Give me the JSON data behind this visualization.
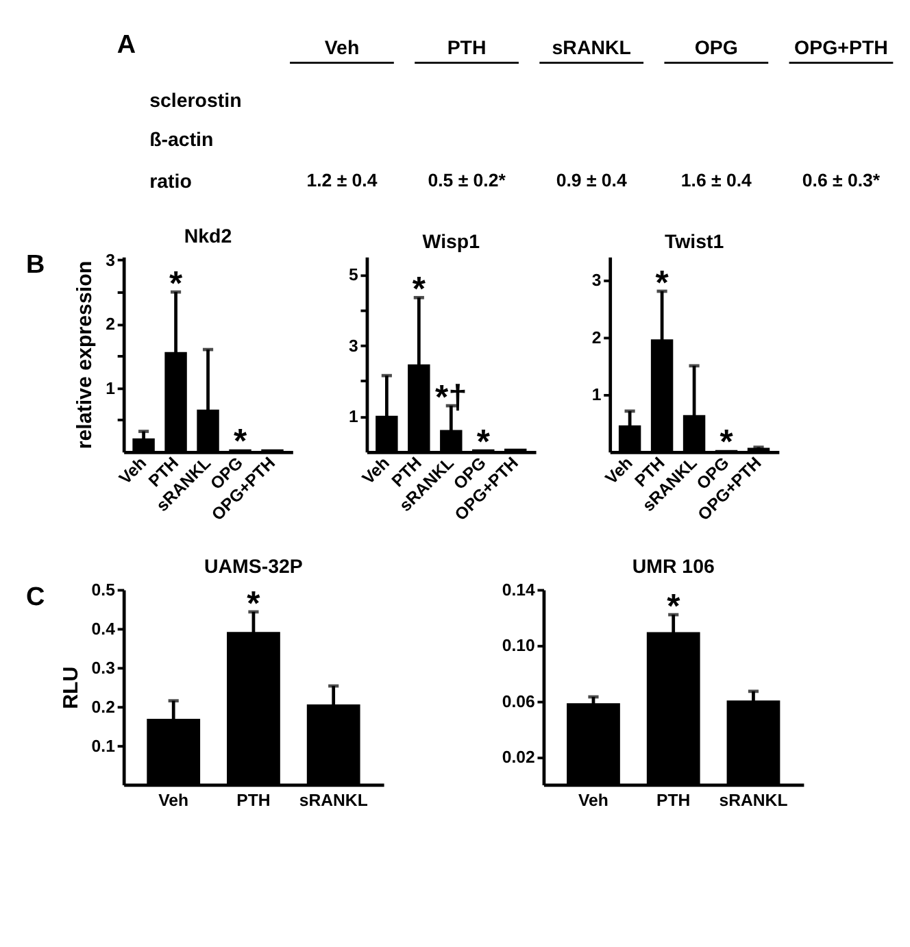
{
  "chart_data": [
    {
      "type": "other",
      "categories": [
        "Veh",
        "PTH",
        "sRANKL",
        "OPG",
        "OPG+PTH"
      ],
      "y_categories": [
        "sclerostin",
        "ß-actin",
        "ratio"
      ],
      "annotations": [
        "A",
        "1.2 ± 0.4",
        "0.5 ± 0.2*",
        "0.9 ± 0.4",
        "1.6 ± 0.4",
        "0.6 ± 0.3*"
      ]
    },
    {
      "type": "bar",
      "title": "Nkd2",
      "ylabel": "relative expression",
      "categories": [
        "Veh",
        "PTH",
        "sRANKL",
        "OPG",
        "OPG+PTH"
      ],
      "color": "#000000",
      "values": [
        0.2,
        1.55,
        0.65,
        0.03,
        0.03
      ],
      "errors": [
        [
          0.2,
          0.32
        ],
        [
          1.55,
          2.5
        ],
        [
          0.65,
          1.6
        ],
        null,
        null
      ],
      "ylim": [
        0,
        3.05
      ],
      "yticks": [
        {
          "value": 0.5,
          "label": null
        },
        1,
        {
          "value": 1.5,
          "label": null
        },
        2,
        {
          "value": 2.5,
          "label": null
        },
        3
      ],
      "annotations": [
        "B",
        {
          "text": "*",
          "x": "PTH",
          "y": 2.5
        },
        {
          "text": "*",
          "x": "OPG",
          "y": 0.03
        }
      ]
    },
    {
      "type": "bar",
      "title": "Wisp1",
      "categories": [
        "Veh",
        "PTH",
        "sRANKL",
        "OPG",
        "OPG+PTH"
      ],
      "color": "#000000",
      "values": [
        1.0,
        2.45,
        0.6,
        0.05,
        0.07
      ],
      "errors": [
        [
          1.0,
          2.15
        ],
        [
          2.45,
          4.35
        ],
        [
          0.6,
          1.3
        ],
        null,
        null
      ],
      "ylim": [
        0,
        5.5
      ],
      "yticks": [
        1,
        {
          "value": 2,
          "label": null
        },
        3,
        {
          "value": 4,
          "label": null
        },
        5
      ],
      "annotations": [
        {
          "text": "*",
          "x": "PTH",
          "y": 4.35
        },
        {
          "text": "*†",
          "x": "sRANKL",
          "y": 1.3
        },
        {
          "text": "*",
          "x": "OPG",
          "y": 0.05
        }
      ]
    },
    {
      "type": "bar",
      "title": "Twist1",
      "categories": [
        "Veh",
        "PTH",
        "sRANKL",
        "OPG",
        "OPG+PTH"
      ],
      "color": "#000000",
      "values": [
        0.45,
        1.95,
        0.63,
        0.02,
        0.06
      ],
      "errors": [
        [
          0.45,
          0.71
        ],
        [
          1.95,
          2.8
        ],
        [
          0.63,
          1.5
        ],
        null,
        [
          0.06,
          0.08
        ]
      ],
      "ylim": [
        0,
        3.4
      ],
      "yticks": [
        1,
        2,
        3
      ],
      "annotations": [
        {
          "text": "*",
          "x": "PTH",
          "y": 2.8
        },
        {
          "text": "*",
          "x": "OPG",
          "y": 0.02
        }
      ]
    },
    {
      "type": "bar",
      "title": "UAMS-32P",
      "ylabel": "RLU",
      "categories": [
        "Veh",
        "PTH",
        "sRANKL"
      ],
      "color": "#000000",
      "values": [
        0.167,
        0.39,
        0.204
      ],
      "errors": [
        [
          0.167,
          0.215
        ],
        [
          0.39,
          0.443
        ],
        [
          0.204,
          0.253
        ]
      ],
      "ylim": [
        0,
        0.5
      ],
      "yticks": [
        0.1,
        0.2,
        0.3,
        0.4,
        0.5
      ],
      "annotations": [
        "C",
        {
          "text": "*",
          "x": "PTH",
          "y": 0.443
        }
      ]
    },
    {
      "type": "bar",
      "title": "UMR 106",
      "categories": [
        "Veh",
        "PTH",
        "sRANKL"
      ],
      "color": "#000000",
      "values": [
        0.058,
        0.109,
        0.06
      ],
      "errors": [
        [
          0.058,
          0.063
        ],
        [
          0.109,
          0.122
        ],
        [
          0.06,
          0.067
        ]
      ],
      "ylim": [
        0,
        0.14
      ],
      "yticks": [
        0.02,
        0.06,
        {
          "value": 0.1,
          "label": "0.10"
        },
        0.14
      ],
      "annotations": [
        {
          "text": "*",
          "x": "PTH",
          "y": 0.122
        }
      ]
    }
  ]
}
